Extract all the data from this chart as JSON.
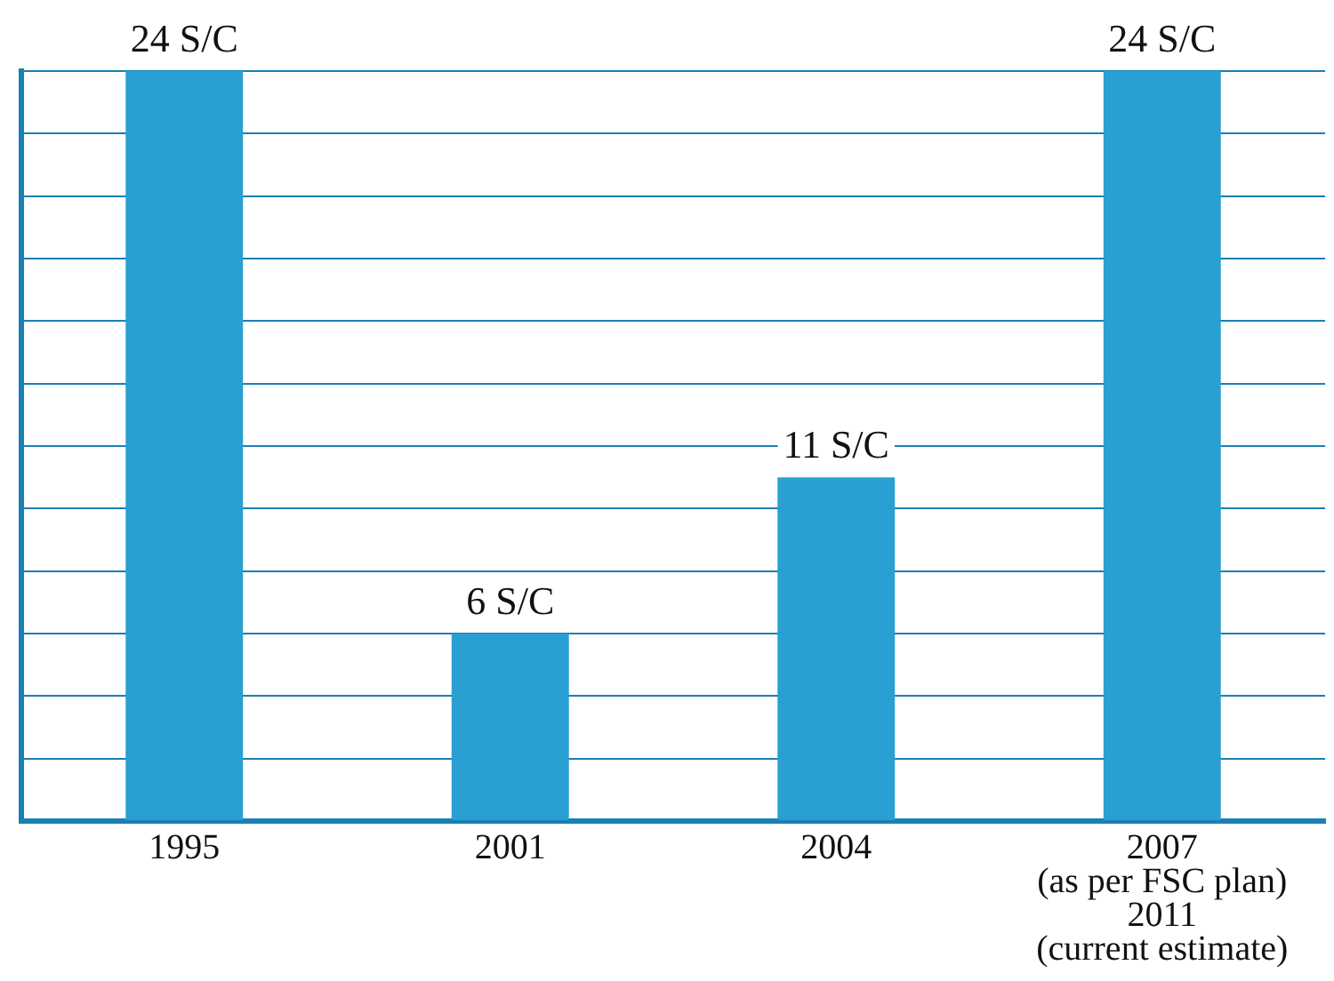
{
  "chart_data": {
    "type": "bar",
    "categories": [
      "1995",
      "2001",
      "2004",
      "2007\n(as per FSC plan)\n2011\n(current estimate)"
    ],
    "values": [
      24,
      6,
      11,
      24
    ],
    "value_labels": [
      "24 S/C",
      "6 S/C",
      "11 S/C",
      "24 S/C"
    ],
    "color": "#2a9fd2",
    "ylim": [
      0,
      24
    ],
    "yticks": [
      {
        "value": 0,
        "label": null
      },
      {
        "value": 2,
        "label": null
      },
      {
        "value": 4,
        "label": null
      },
      {
        "value": 6,
        "label": null
      },
      {
        "value": 8,
        "label": null
      },
      {
        "value": 10,
        "label": null
      },
      {
        "value": 12,
        "label": null
      },
      {
        "value": 14,
        "label": null
      },
      {
        "value": 16,
        "label": null
      },
      {
        "value": 18,
        "label": null
      },
      {
        "value": 20,
        "label": null
      },
      {
        "value": 22,
        "label": null
      },
      {
        "value": 24,
        "label": null
      }
    ],
    "grid": "y",
    "legend": false,
    "tick_labels": "x"
  }
}
